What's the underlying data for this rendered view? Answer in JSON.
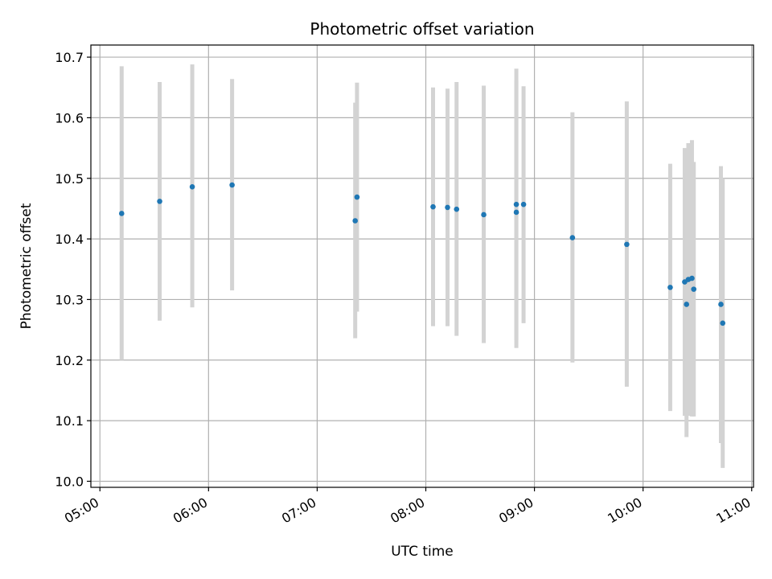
{
  "chart_data": {
    "type": "scatter",
    "title": "Photometric offset variation",
    "xlabel": "UTC time",
    "ylabel": "Photometric offset",
    "x_axis": {
      "kind": "time",
      "range": [
        "04:55",
        "11:01"
      ],
      "ticks": [
        "05:00",
        "06:00",
        "07:00",
        "08:00",
        "09:00",
        "10:00",
        "11:00"
      ],
      "tick_rotation_deg": 30
    },
    "y_axis": {
      "range": [
        9.99,
        10.72
      ],
      "ticks": [
        10.0,
        10.1,
        10.2,
        10.3,
        10.4,
        10.5,
        10.6,
        10.7
      ],
      "tick_labels": [
        "10.0",
        "10.1",
        "10.2",
        "10.3",
        "10.4",
        "10.5",
        "10.6",
        "10.7"
      ]
    },
    "grid": true,
    "marker_color": "#1f77b4",
    "errorbar_color": "#d3d3d3",
    "points": [
      {
        "time": "05:12",
        "y": 10.442,
        "err_low": 10.2,
        "err_high": 10.685
      },
      {
        "time": "05:33",
        "y": 10.462,
        "err_low": 10.265,
        "err_high": 10.659
      },
      {
        "time": "05:51",
        "y": 10.486,
        "err_low": 10.287,
        "err_high": 10.688
      },
      {
        "time": "06:13",
        "y": 10.489,
        "err_low": 10.315,
        "err_high": 10.664
      },
      {
        "time": "07:21",
        "y": 10.43,
        "err_low": 10.236,
        "err_high": 10.625
      },
      {
        "time": "07:22",
        "y": 10.469,
        "err_low": 10.28,
        "err_high": 10.658
      },
      {
        "time": "08:04",
        "y": 10.453,
        "err_low": 10.256,
        "err_high": 10.65
      },
      {
        "time": "08:12",
        "y": 10.452,
        "err_low": 10.256,
        "err_high": 10.648
      },
      {
        "time": "08:17",
        "y": 10.449,
        "err_low": 10.24,
        "err_high": 10.659
      },
      {
        "time": "08:32",
        "y": 10.44,
        "err_low": 10.228,
        "err_high": 10.653
      },
      {
        "time": "08:50",
        "y": 10.444,
        "err_low": 10.22,
        "err_high": 10.661
      },
      {
        "time": "08:50",
        "y": 10.457,
        "err_low": 10.233,
        "err_high": 10.681
      },
      {
        "time": "08:54",
        "y": 10.457,
        "err_low": 10.261,
        "err_high": 10.652
      },
      {
        "time": "09:21",
        "y": 10.402,
        "err_low": 10.196,
        "err_high": 10.609
      },
      {
        "time": "09:51",
        "y": 10.391,
        "err_low": 10.156,
        "err_high": 10.627
      },
      {
        "time": "10:15",
        "y": 10.32,
        "err_low": 10.116,
        "err_high": 10.524
      },
      {
        "time": "10:23",
        "y": 10.329,
        "err_low": 10.108,
        "err_high": 10.55
      },
      {
        "time": "10:24",
        "y": 10.292,
        "err_low": 10.073,
        "err_high": 10.51
      },
      {
        "time": "10:25",
        "y": 10.333,
        "err_low": 10.108,
        "err_high": 10.558
      },
      {
        "time": "10:27",
        "y": 10.335,
        "err_low": 10.107,
        "err_high": 10.563
      },
      {
        "time": "10:28",
        "y": 10.317,
        "err_low": 10.107,
        "err_high": 10.527
      },
      {
        "time": "10:43",
        "y": 10.292,
        "err_low": 10.063,
        "err_high": 10.52
      },
      {
        "time": "10:44",
        "y": 10.261,
        "err_low": 10.022,
        "err_high": 10.5
      }
    ]
  }
}
